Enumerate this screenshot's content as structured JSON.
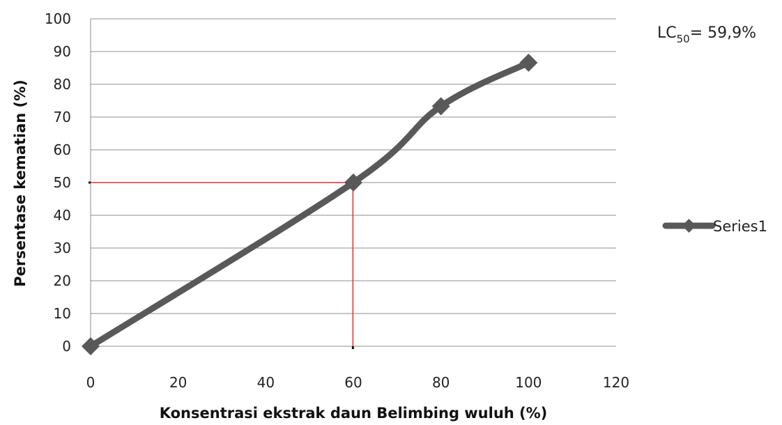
{
  "chart_data": {
    "type": "line",
    "x": [
      0,
      60,
      80,
      100
    ],
    "series": [
      {
        "name": "Series1",
        "values": [
          0,
          50,
          73.3,
          86.6
        ],
        "color": "#595959"
      }
    ],
    "xlabel": "Konsentrasi ekstrak daun Belimbing wuluh (%)",
    "ylabel": "Persentase kematian (%)",
    "xlim": [
      0,
      120
    ],
    "ylim": [
      0,
      100
    ],
    "xticks": [
      0,
      20,
      40,
      60,
      80,
      100,
      120
    ],
    "yticks": [
      0,
      10,
      20,
      30,
      40,
      50,
      60,
      70,
      80,
      90,
      100
    ],
    "grid": "horizontal",
    "legend_position": "right",
    "marker": "diamond",
    "reference_point": {
      "x": 59.9,
      "y": 50,
      "color": "#e03030"
    },
    "annotation": {
      "prefix": "LC",
      "subscript": "50",
      "suffix": "= 59,9%"
    }
  }
}
